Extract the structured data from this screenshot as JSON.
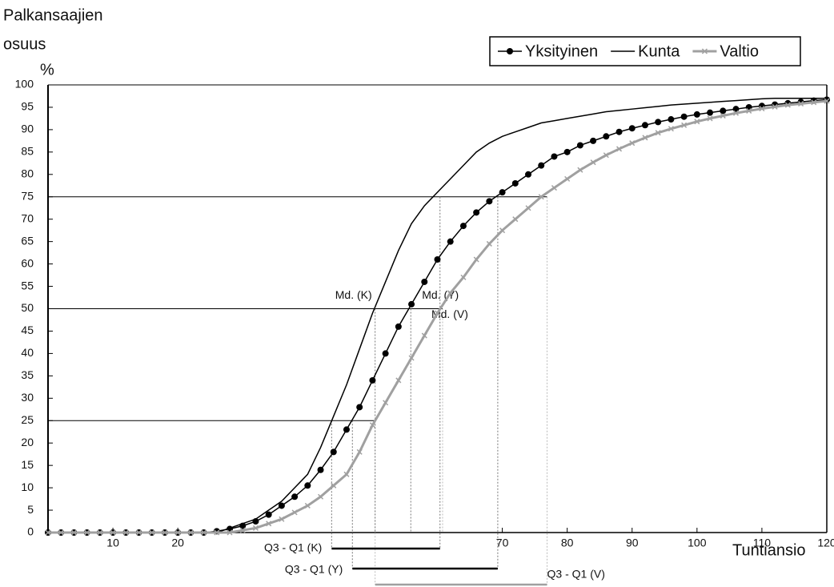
{
  "chart_data": {
    "type": "line",
    "y_label": [
      "Palkansaajien",
      "osuus",
      "%"
    ],
    "x_label": "Tuntiansio",
    "x": [
      0,
      2,
      4,
      6,
      8,
      10,
      12,
      14,
      16,
      18,
      20,
      22,
      24,
      26,
      28,
      30,
      32,
      34,
      36,
      38,
      40,
      42,
      44,
      46,
      48,
      50,
      52,
      54,
      56,
      58,
      60,
      62,
      64,
      66,
      68,
      70,
      72,
      74,
      76,
      78,
      80,
      82,
      84,
      86,
      88,
      90,
      92,
      94,
      96,
      98,
      100,
      102,
      104,
      106,
      108,
      110,
      112,
      114,
      116,
      118,
      120
    ],
    "series": [
      {
        "name": "Yksityinen",
        "color": "#000000",
        "marker": "circle",
        "values": [
          0,
          0,
          0,
          0,
          0,
          0,
          0,
          0,
          0,
          0,
          0,
          0,
          0,
          0.3,
          0.8,
          1.5,
          2.5,
          4,
          6,
          8,
          10.5,
          14,
          18,
          23,
          28,
          34,
          40,
          46,
          51,
          56,
          61,
          65,
          68.5,
          71.5,
          74,
          76,
          78,
          80,
          82,
          84,
          85,
          86.5,
          87.5,
          88.5,
          89.5,
          90.3,
          91,
          91.7,
          92.3,
          92.9,
          93.4,
          93.8,
          94.2,
          94.6,
          95,
          95.3,
          95.6,
          95.9,
          96.2,
          96.5,
          96.7
        ]
      },
      {
        "name": "Kunta",
        "color": "#000000",
        "marker": "none",
        "values": [
          0,
          0,
          0,
          0,
          0,
          0,
          0,
          0,
          0,
          0,
          0,
          0,
          0,
          0,
          1,
          2,
          3,
          5,
          7,
          10,
          13,
          19,
          26,
          33,
          41,
          49,
          56,
          63,
          69,
          73,
          76,
          79,
          82,
          85,
          87,
          88.5,
          89.5,
          90.5,
          91.5,
          92,
          92.5,
          93,
          93.5,
          94,
          94.3,
          94.6,
          94.9,
          95.2,
          95.5,
          95.7,
          95.9,
          96.1,
          96.3,
          96.5,
          96.7,
          96.9,
          97,
          97,
          97,
          97,
          97
        ]
      },
      {
        "name": "Valtio",
        "color": "#a0a0a0",
        "marker": "cross",
        "values": [
          0,
          0,
          0,
          0,
          0,
          0,
          0,
          0,
          0,
          0,
          0,
          0,
          0,
          0,
          0,
          0.5,
          1,
          2,
          3,
          4.5,
          6,
          8,
          10.5,
          13,
          18,
          24,
          29,
          34,
          39,
          44,
          49,
          53.5,
          57,
          61,
          64.5,
          67.5,
          70,
          72.5,
          75,
          77,
          79,
          81,
          82.7,
          84.3,
          85.7,
          87,
          88.2,
          89.3,
          90.2,
          91,
          91.8,
          92.5,
          93.1,
          93.7,
          94.2,
          94.7,
          95.1,
          95.5,
          95.8,
          96.1,
          96.4
        ]
      }
    ],
    "xlim": [
      0,
      120
    ],
    "xticks": [
      10,
      20,
      70,
      80,
      90,
      100,
      110,
      120
    ],
    "ylim": [
      0,
      100
    ],
    "yticks": [
      0,
      5,
      10,
      15,
      20,
      25,
      30,
      35,
      40,
      45,
      50,
      55,
      60,
      65,
      70,
      75,
      80,
      85,
      90,
      95,
      100
    ],
    "reference_levels": [
      25,
      50,
      75
    ],
    "quartiles": [
      {
        "median_label": "Md. (K)",
        "range_label": "Q3 - Q1 (K)",
        "q1": 43.7,
        "median": 50.4,
        "q3": 60.4,
        "color": "#000000"
      },
      {
        "median_label": "Md. (Y)",
        "range_label": "Q3 - Q1 (Y)",
        "q1": 46.9,
        "median": 55.9,
        "q3": 69.3,
        "color": "#000000"
      },
      {
        "median_label": "Md. (V)",
        "range_label": "Q3 - Q1 (V)",
        "q1": 50.4,
        "median": 60.8,
        "q3": 76.9,
        "color": "#a0a0a0"
      }
    ],
    "legend": "top-right"
  }
}
